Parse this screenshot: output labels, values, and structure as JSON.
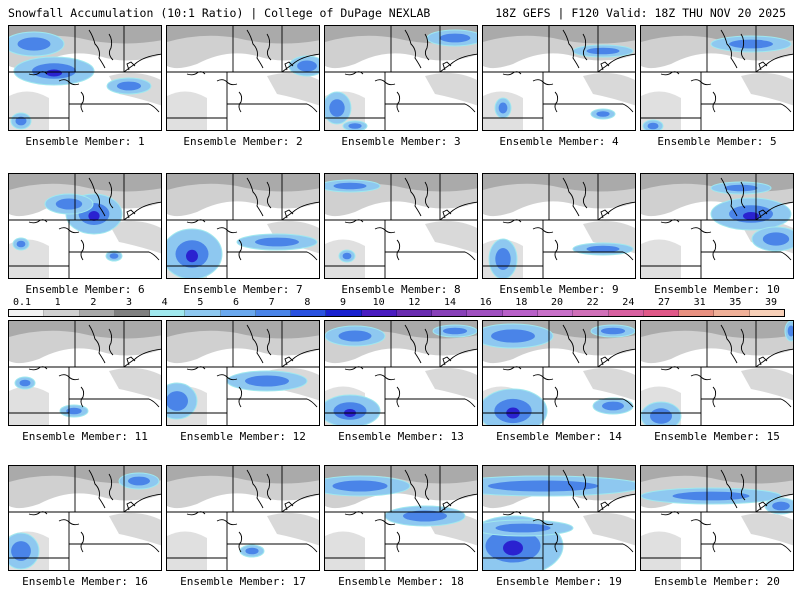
{
  "header": {
    "title_left": "Snowfall Accumulation (10:1 Ratio) | College of DuPage NEXLAB",
    "title_right": "18Z GEFS | F120 Valid: 18Z THU NOV 20 2025"
  },
  "panels": [
    {
      "label": "Ensemble Member: 1"
    },
    {
      "label": "Ensemble Member: 2"
    },
    {
      "label": "Ensemble Member: 3"
    },
    {
      "label": "Ensemble Member: 4"
    },
    {
      "label": "Ensemble Member: 5"
    },
    {
      "label": "Ensemble Member: 6"
    },
    {
      "label": "Ensemble Member: 7"
    },
    {
      "label": "Ensemble Member: 8"
    },
    {
      "label": "Ensemble Member: 9"
    },
    {
      "label": "Ensemble Member: 10"
    },
    {
      "label": "Ensemble Member: 11"
    },
    {
      "label": "Ensemble Member: 12"
    },
    {
      "label": "Ensemble Member: 13"
    },
    {
      "label": "Ensemble Member: 14"
    },
    {
      "label": "Ensemble Member: 15"
    },
    {
      "label": "Ensemble Member: 16"
    },
    {
      "label": "Ensemble Member: 17"
    },
    {
      "label": "Ensemble Member: 18"
    },
    {
      "label": "Ensemble Member: 19"
    },
    {
      "label": "Ensemble Member: 20"
    }
  ],
  "colorbar": {
    "labels": [
      "0.1",
      "1",
      "2",
      "3",
      "4",
      "5",
      "6",
      "7",
      "8",
      "9",
      "10",
      "12",
      "14",
      "16",
      "18",
      "20",
      "22",
      "24",
      "27",
      "31",
      "35",
      "39"
    ],
    "colors": [
      "#f2f2f2",
      "#d0d0d0",
      "#a8a8a8",
      "#808080",
      "#a0e8ee",
      "#8ec8f0",
      "#6aa8ee",
      "#4a84e8",
      "#2a52e0",
      "#1a22d0",
      "#4a1cc0",
      "#6a2cb0",
      "#8840b8",
      "#a050c0",
      "#b860c8",
      "#c870c8",
      "#d070b8",
      "#d860a0",
      "#e05888",
      "#e89080",
      "#f0b098",
      "#f8d0b8"
    ]
  }
}
